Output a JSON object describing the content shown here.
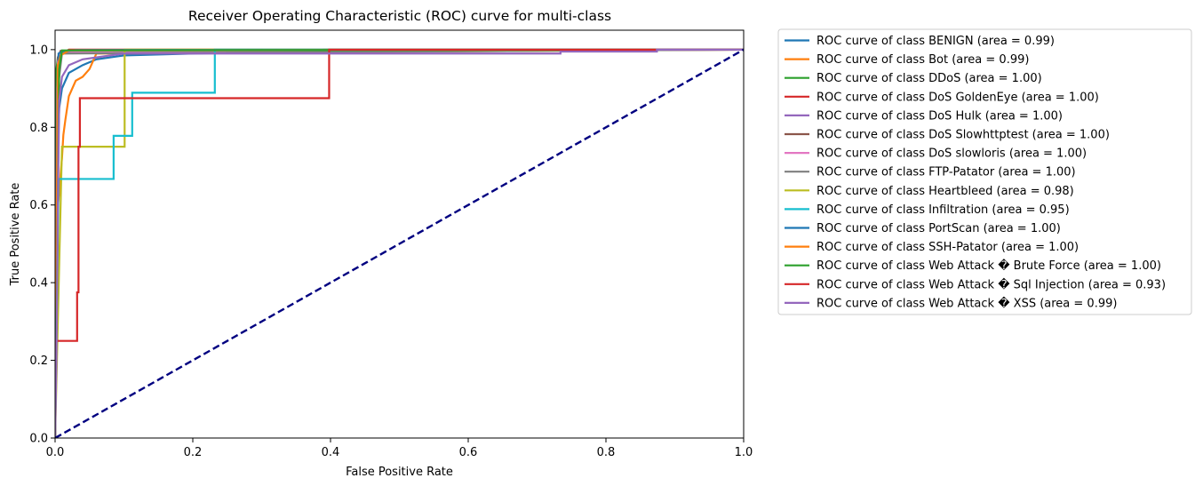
{
  "chart_data": {
    "type": "line",
    "title": "Receiver Operating Characteristic (ROC) curve for multi-class",
    "xlabel": "False Positive Rate",
    "ylabel": "True Positive Rate",
    "xlim": [
      0.0,
      1.0
    ],
    "ylim": [
      0.0,
      1.05
    ],
    "xticks": [
      0.0,
      0.2,
      0.4,
      0.6,
      0.8,
      1.0
    ],
    "xtick_labels": [
      "0.0",
      "0.2",
      "0.4",
      "0.6",
      "0.8",
      "1.0"
    ],
    "yticks": [
      0.0,
      0.2,
      0.4,
      0.6,
      0.8,
      1.0
    ],
    "ytick_labels": [
      "0.0",
      "0.2",
      "0.4",
      "0.6",
      "0.8",
      "1.0"
    ],
    "grid": false,
    "legend_position": "outside-right-top",
    "diagonal": {
      "x": [
        0,
        1
      ],
      "y": [
        0,
        1
      ],
      "color": "#000080",
      "style": "dashed"
    },
    "series": [
      {
        "name": "ROC curve of class BENIGN (area = 0.99)",
        "color": "#1f77b4",
        "x": [
          0,
          0.002,
          0.004,
          0.006,
          0.01,
          0.02,
          0.04,
          0.06,
          0.1,
          0.2,
          0.4,
          1.0
        ],
        "y": [
          0,
          0.5,
          0.75,
          0.85,
          0.9,
          0.94,
          0.96,
          0.975,
          0.985,
          0.99,
          0.995,
          1.0
        ]
      },
      {
        "name": "ROC curve of class Bot (area = 0.99)",
        "color": "#ff7f0e",
        "x": [
          0,
          0.004,
          0.006,
          0.008,
          0.01,
          0.012,
          0.015,
          0.02,
          0.03,
          0.04,
          0.05,
          0.06,
          1.0
        ],
        "y": [
          0,
          0.6,
          0.63,
          0.68,
          0.72,
          0.78,
          0.82,
          0.88,
          0.92,
          0.93,
          0.95,
          0.99,
          1.0
        ]
      },
      {
        "name": "ROC curve of class DDoS (area = 1.00)",
        "color": "#2ca02c",
        "x": [
          0,
          0.002,
          0.004,
          0.008,
          0.02,
          0.1,
          0.37,
          0.39,
          1.0
        ],
        "y": [
          0,
          0.95,
          0.98,
          0.99,
          0.992,
          0.993,
          0.995,
          1.0,
          1.0
        ]
      },
      {
        "name": "ROC curve of class DoS GoldenEye (area = 1.00)",
        "color": "#d62728",
        "x": [
          0,
          0.005,
          0.01,
          0.02,
          1.0
        ],
        "y": [
          0,
          0.97,
          0.99,
          1.0,
          1.0
        ]
      },
      {
        "name": "ROC curve of class DoS Hulk (area = 1.00)",
        "color": "#9467bd",
        "x": [
          0,
          0.003,
          0.006,
          0.01,
          0.03,
          1.0
        ],
        "y": [
          0,
          0.9,
          0.97,
          0.99,
          0.998,
          1.0
        ]
      },
      {
        "name": "ROC curve of class DoS Slowhttptest (area = 1.00)",
        "color": "#8c564b",
        "x": [
          0,
          0.004,
          0.008,
          1.0
        ],
        "y": [
          0,
          0.98,
          0.997,
          1.0
        ]
      },
      {
        "name": "ROC curve of class DoS slowloris (area = 1.00)",
        "color": "#e377c2",
        "x": [
          0,
          0.004,
          0.01,
          1.0
        ],
        "y": [
          0,
          0.97,
          0.995,
          1.0
        ]
      },
      {
        "name": "ROC curve of class FTP-Patator (area = 1.00)",
        "color": "#7f7f7f",
        "x": [
          0,
          0.002,
          0.004,
          0.01,
          1.0
        ],
        "y": [
          0,
          0.6,
          0.9,
          0.99,
          1.0
        ]
      },
      {
        "name": "ROC curve of class Heartbleed (area = 0.98)",
        "color": "#bcbd22",
        "x": [
          0,
          0.01,
          0.01,
          0.101,
          0.101,
          1.0
        ],
        "y": [
          0,
          0.75,
          0.75,
          0.75,
          1.0,
          1.0
        ]
      },
      {
        "name": "ROC curve of class Infiltration (area = 0.95)",
        "color": "#17becf",
        "x": [
          0,
          0.005,
          0.085,
          0.085,
          0.112,
          0.112,
          0.232,
          0.232,
          1.0
        ],
        "y": [
          0,
          0.667,
          0.667,
          0.778,
          0.778,
          0.889,
          0.889,
          1.0,
          1.0
        ]
      },
      {
        "name": "ROC curve of class PortScan (area = 1.00)",
        "color": "#1f77b4",
        "x": [
          0,
          0.005,
          0.01,
          0.03,
          1.0
        ],
        "y": [
          0,
          0.99,
          0.995,
          0.999,
          1.0
        ]
      },
      {
        "name": "ROC curve of class SSH-Patator (area = 1.00)",
        "color": "#ff7f0e",
        "x": [
          0,
          0.004,
          0.008,
          0.02,
          1.0
        ],
        "y": [
          0,
          0.96,
          0.985,
          0.998,
          1.0
        ]
      },
      {
        "name": "ROC curve of class Web Attack � Brute Force (area = 1.00)",
        "color": "#2ca02c",
        "x": [
          0,
          0.003,
          0.006,
          0.01,
          1.0
        ],
        "y": [
          0,
          0.43,
          0.95,
          0.998,
          1.0
        ]
      },
      {
        "name": "ROC curve of class Web Attack � Sql Injection (area = 0.93)",
        "color": "#d62728",
        "x": [
          0,
          0.0,
          0.032,
          0.032,
          0.034,
          0.034,
          0.036,
          0.036,
          0.398,
          0.398,
          0.87,
          1.0
        ],
        "y": [
          0,
          0.25,
          0.25,
          0.375,
          0.375,
          0.75,
          0.75,
          0.875,
          0.875,
          1.0,
          1.0,
          1.0
        ]
      },
      {
        "name": "ROC curve of class Web Attack � XSS (area = 0.99)",
        "color": "#9467bd",
        "x": [
          0,
          0.002,
          0.004,
          0.006,
          0.01,
          0.02,
          0.04,
          0.06,
          0.1,
          0.734,
          0.734,
          0.874,
          0.874,
          1.0
        ],
        "y": [
          0,
          0.2,
          0.6,
          0.87,
          0.93,
          0.96,
          0.975,
          0.98,
          0.99,
          0.99,
          0.995,
          0.995,
          1.0,
          1.0
        ]
      }
    ]
  }
}
